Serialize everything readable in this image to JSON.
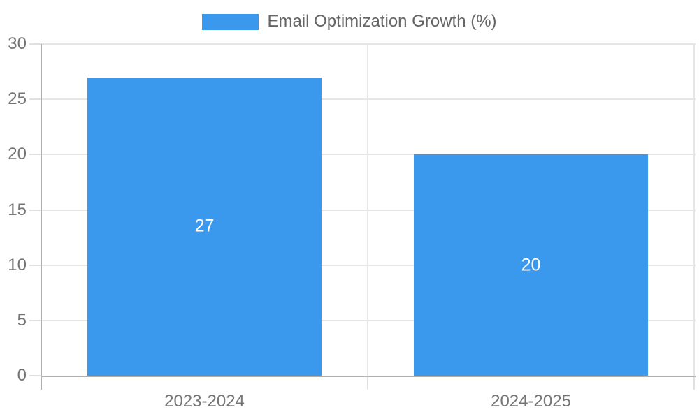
{
  "chart_data": {
    "type": "bar",
    "title": "Email Optimization Growth (%)",
    "categories": [
      "2023-2024",
      "2024-2025"
    ],
    "series": [
      {
        "name": "Email Optimization Growth (%)",
        "values": [
          27,
          20
        ]
      }
    ],
    "value_labels": [
      "27",
      "20"
    ],
    "xlabel": "",
    "ylabel": "",
    "ylim": [
      0,
      30
    ],
    "yticks": [
      0,
      5,
      10,
      15,
      20,
      25,
      30
    ],
    "grid": true,
    "legend_position": "top",
    "colors": {
      "bar": "#3a99ec",
      "value_label": "#ffffff",
      "axis_text": "#757575",
      "legend_text": "#666666",
      "gridline": "#e6e6e6",
      "tick": "#e0e0e0",
      "axis_line": "#b0b0b0",
      "background": "#ffffff"
    }
  }
}
